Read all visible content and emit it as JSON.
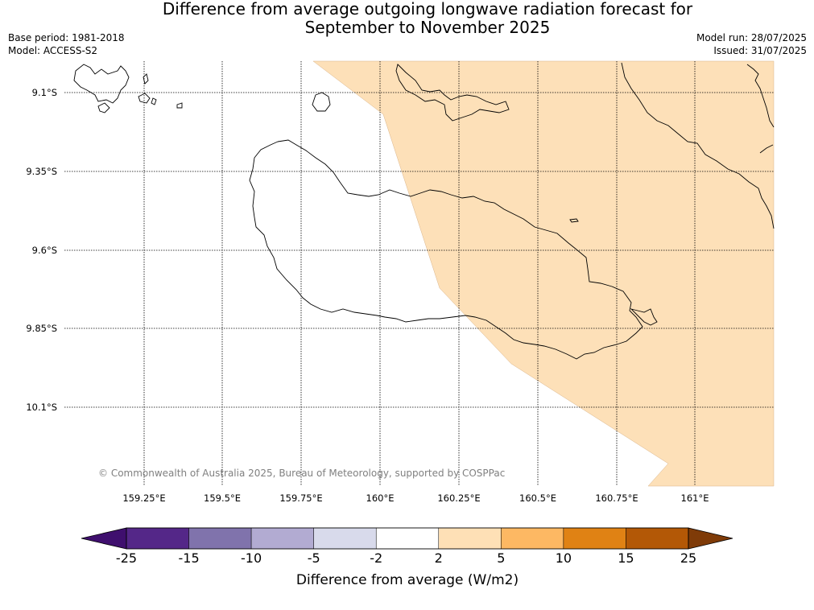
{
  "title_line1": "Difference from average outgoing longwave radiation forecast for",
  "title_line2": "September to November 2025",
  "info": {
    "base_period": "Base period: 1981-2018",
    "model": "Model: ACCESS-S2",
    "model_run": "Model run: 28/07/2025",
    "issued": "Issued: 31/07/2025"
  },
  "map": {
    "lat_labels": [
      "9.1°S",
      "9.35°S",
      "9.6°S",
      "9.85°S",
      "10.1°S"
    ],
    "lon_labels": [
      "159.25°E",
      "159.5°E",
      "159.75°E",
      "160°E",
      "160.25°E",
      "160.5°E",
      "160.75°E",
      "161°E"
    ],
    "copyright": "© Commonwealth of Australia 2025, Bureau of Meteorology, supported by COSPPac",
    "region_fill_color": "#fde0b8",
    "region_category": "2 to 5"
  },
  "colorbar": {
    "title": "Difference from average (W/m2)",
    "tick_labels": [
      "-25",
      "-15",
      "-10",
      "-5",
      "-2",
      "2",
      "5",
      "10",
      "15",
      "25"
    ],
    "colors": [
      "#3f0f6e",
      "#542788",
      "#8073ac",
      "#b2abd2",
      "#d8daeb",
      "#ffffff",
      "#fee0b6",
      "#fdb863",
      "#e08214",
      "#b35806",
      "#7f3b08"
    ]
  }
}
